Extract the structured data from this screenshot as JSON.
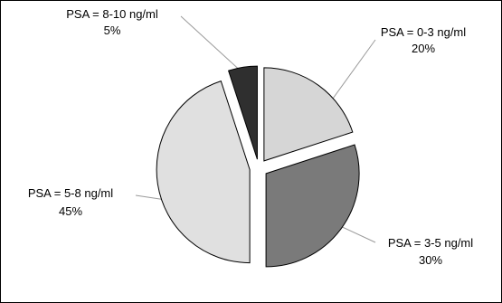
{
  "chart_data": {
    "type": "pie",
    "title": "",
    "start_angle_deg": 0,
    "slices": [
      {
        "label": "PSA = 0-3 ng/ml",
        "value": 20,
        "value_label": "20%",
        "color": "#d6d6d6",
        "exploded": true
      },
      {
        "label": "PSA = 3-5 ng/ml",
        "value": 30,
        "value_label": "30%",
        "color": "#7a7a7a",
        "exploded": true
      },
      {
        "label": "PSA = 5-8 ng/ml",
        "value": 45,
        "value_label": "45%",
        "color": "#e0e0e0",
        "exploded": true
      },
      {
        "label": "PSA = 8-10 ng/ml",
        "value": 5,
        "value_label": "5%",
        "color": "#2f2f2f",
        "exploded": true
      }
    ],
    "legend": "none",
    "border": true
  }
}
